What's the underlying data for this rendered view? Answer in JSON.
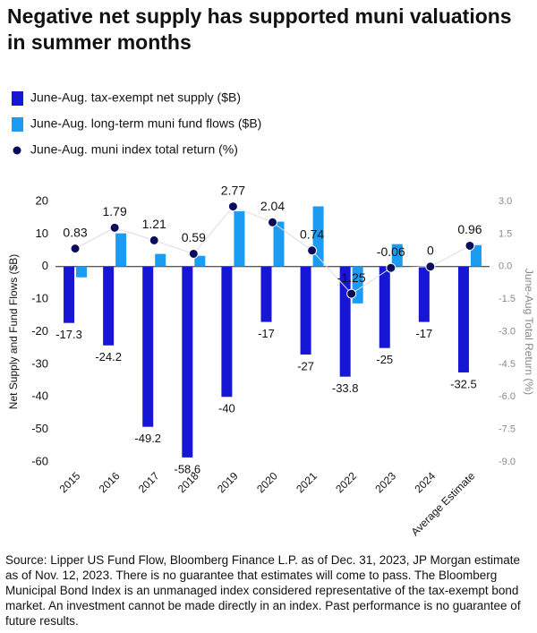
{
  "chart_data": {
    "type": "bar",
    "title": "Negative net supply has supported muni valuations in summer months",
    "categories": [
      "2015",
      "2016",
      "2017",
      "2018",
      "2019",
      "2020",
      "2021",
      "2022",
      "2023",
      "2024",
      "Average Estimate"
    ],
    "series": [
      {
        "name": "June-Aug. tax-exempt net supply ($B)",
        "color": "#1616d4",
        "values": [
          -17.3,
          -24.2,
          -49.2,
          -58.6,
          -40,
          -17,
          -27,
          -33.8,
          -25,
          -17,
          -32.5
        ]
      },
      {
        "name": "June-Aug. long-term muni fund flows ($B)",
        "color": "#1b9cf2",
        "values": [
          -3.3,
          10.2,
          3.9,
          3.3,
          17,
          13.8,
          18.5,
          -11.3,
          6.9,
          null,
          6.6
        ]
      },
      {
        "name": "June-Aug. muni index total return (%)",
        "color": "#0b0b5c",
        "axis": "y2",
        "type": "scatter",
        "values": [
          0.83,
          1.79,
          1.21,
          0.59,
          2.77,
          2.04,
          0.74,
          -1.25,
          -0.06,
          0,
          0.96
        ]
      }
    ],
    "ylabel": "Net Supply and Fund Flows ($B)",
    "y2label": "June-Aug Total Return (%)",
    "ylim": [
      -60,
      20
    ],
    "yticks": [
      -60,
      -50,
      -40,
      -30,
      -20,
      -10,
      0,
      10,
      20
    ],
    "y2lim": [
      -9,
      3
    ],
    "y2ticks": [
      {
        "value": -9,
        "label": "-9.0"
      },
      {
        "value": -7.5,
        "label": "-7.5"
      },
      {
        "value": -6,
        "label": "-6.0"
      },
      {
        "value": -4.5,
        "label": "-4.5"
      },
      {
        "value": -3,
        "label": "-3.0"
      },
      {
        "value": -1.5,
        "label": "-1.5"
      },
      {
        "value": 0,
        "label": "0.0"
      },
      {
        "value": 1.5,
        "label": "1.5"
      },
      {
        "value": 3,
        "label": "3.0"
      }
    ],
    "note": "Source: Lipper US Fund Flow, Bloomberg Finance L.P. as of Dec. 31, 2023, JP Morgan estimate as of Nov. 12, 2023. There is no guarantee that estimates will come to pass. The Bloomberg Municipal Bond Index is an unmanaged index considered representative of the tax-exempt bond market. An investment cannot be made directly in an index. Past performance is no guarantee of future results."
  }
}
